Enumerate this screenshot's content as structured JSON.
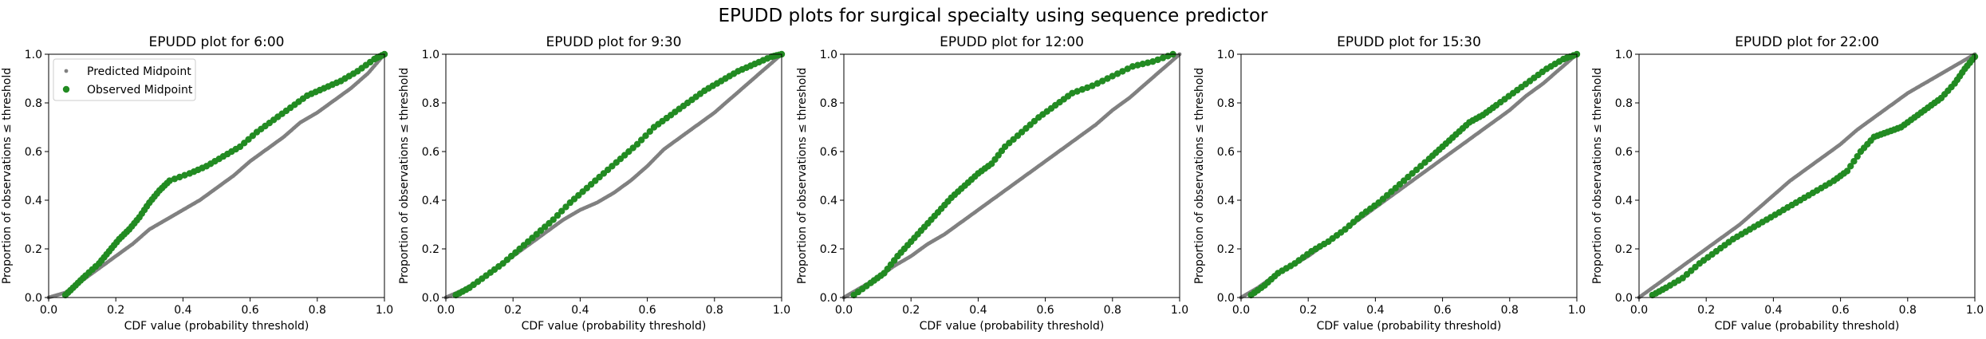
{
  "chart_data": {
    "suptitle": "EPUDD plots for surgical specialty using sequence predictor",
    "legend": {
      "placement": "upper-left",
      "panel": 0,
      "entries": [
        {
          "label": "Predicted Midpoint",
          "color": "#808080",
          "marker": "small-dot"
        },
        {
          "label": "Observed Midpoint",
          "color": "#228b22",
          "marker": "dot"
        }
      ]
    },
    "xlabel": "CDF value (probability threshold)",
    "ylabel": "Proportion of observations ≤ threshold",
    "xlim": [
      0,
      1
    ],
    "ylim": [
      0,
      1
    ],
    "xticks": [
      "0.0",
      "0.2",
      "0.4",
      "0.6",
      "0.8",
      "1.0"
    ],
    "yticks": [
      "0.0",
      "0.2",
      "0.4",
      "0.6",
      "0.8",
      "1.0"
    ],
    "panels": [
      {
        "type": "scatter",
        "title": "EPUDD plot for 6:00",
        "predicted_curve": [
          [
            0,
            0
          ],
          [
            0.05,
            0.02
          ],
          [
            0.1,
            0.07
          ],
          [
            0.15,
            0.12
          ],
          [
            0.2,
            0.17
          ],
          [
            0.25,
            0.22
          ],
          [
            0.3,
            0.28
          ],
          [
            0.35,
            0.32
          ],
          [
            0.4,
            0.36
          ],
          [
            0.45,
            0.4
          ],
          [
            0.5,
            0.45
          ],
          [
            0.55,
            0.5
          ],
          [
            0.6,
            0.56
          ],
          [
            0.65,
            0.61
          ],
          [
            0.7,
            0.66
          ],
          [
            0.75,
            0.72
          ],
          [
            0.8,
            0.76
          ],
          [
            0.85,
            0.81
          ],
          [
            0.9,
            0.86
          ],
          [
            0.95,
            0.92
          ],
          [
            1,
            1
          ]
        ],
        "observed_curve": [
          [
            0.05,
            0.01
          ],
          [
            0.08,
            0.05
          ],
          [
            0.11,
            0.09
          ],
          [
            0.15,
            0.14
          ],
          [
            0.18,
            0.19
          ],
          [
            0.21,
            0.24
          ],
          [
            0.24,
            0.28
          ],
          [
            0.27,
            0.33
          ],
          [
            0.3,
            0.39
          ],
          [
            0.33,
            0.44
          ],
          [
            0.36,
            0.48
          ],
          [
            0.42,
            0.51
          ],
          [
            0.47,
            0.54
          ],
          [
            0.52,
            0.58
          ],
          [
            0.57,
            0.62
          ],
          [
            0.62,
            0.68
          ],
          [
            0.67,
            0.73
          ],
          [
            0.72,
            0.78
          ],
          [
            0.77,
            0.83
          ],
          [
            0.82,
            0.86
          ],
          [
            0.87,
            0.89
          ],
          [
            0.92,
            0.93
          ],
          [
            0.97,
            0.98
          ],
          [
            1,
            1
          ]
        ]
      },
      {
        "type": "scatter",
        "title": "EPUDD plot for 9:30",
        "predicted_curve": [
          [
            0,
            0
          ],
          [
            0.05,
            0.03
          ],
          [
            0.1,
            0.07
          ],
          [
            0.15,
            0.12
          ],
          [
            0.2,
            0.17
          ],
          [
            0.25,
            0.22
          ],
          [
            0.3,
            0.27
          ],
          [
            0.35,
            0.32
          ],
          [
            0.4,
            0.36
          ],
          [
            0.45,
            0.39
          ],
          [
            0.5,
            0.43
          ],
          [
            0.55,
            0.48
          ],
          [
            0.6,
            0.54
          ],
          [
            0.65,
            0.61
          ],
          [
            0.7,
            0.66
          ],
          [
            0.75,
            0.71
          ],
          [
            0.8,
            0.76
          ],
          [
            0.85,
            0.82
          ],
          [
            0.9,
            0.88
          ],
          [
            0.95,
            0.94
          ],
          [
            1,
            1
          ]
        ],
        "observed_curve": [
          [
            0.03,
            0.01
          ],
          [
            0.07,
            0.04
          ],
          [
            0.12,
            0.09
          ],
          [
            0.17,
            0.14
          ],
          [
            0.22,
            0.2
          ],
          [
            0.27,
            0.26
          ],
          [
            0.32,
            0.32
          ],
          [
            0.37,
            0.39
          ],
          [
            0.42,
            0.45
          ],
          [
            0.47,
            0.51
          ],
          [
            0.52,
            0.57
          ],
          [
            0.57,
            0.63
          ],
          [
            0.62,
            0.7
          ],
          [
            0.67,
            0.75
          ],
          [
            0.72,
            0.8
          ],
          [
            0.77,
            0.85
          ],
          [
            0.82,
            0.89
          ],
          [
            0.87,
            0.93
          ],
          [
            0.92,
            0.96
          ],
          [
            0.97,
            0.99
          ],
          [
            1,
            1
          ]
        ]
      },
      {
        "type": "scatter",
        "title": "EPUDD plot for 12:00",
        "predicted_curve": [
          [
            0,
            0
          ],
          [
            0.05,
            0.04
          ],
          [
            0.1,
            0.08
          ],
          [
            0.15,
            0.13
          ],
          [
            0.2,
            0.17
          ],
          [
            0.25,
            0.22
          ],
          [
            0.3,
            0.26
          ],
          [
            0.35,
            0.31
          ],
          [
            0.4,
            0.36
          ],
          [
            0.45,
            0.41
          ],
          [
            0.5,
            0.46
          ],
          [
            0.55,
            0.51
          ],
          [
            0.6,
            0.56
          ],
          [
            0.65,
            0.61
          ],
          [
            0.7,
            0.66
          ],
          [
            0.75,
            0.71
          ],
          [
            0.8,
            0.77
          ],
          [
            0.85,
            0.82
          ],
          [
            0.9,
            0.88
          ],
          [
            0.95,
            0.94
          ],
          [
            1,
            1
          ]
        ],
        "observed_curve": [
          [
            0.03,
            0.01
          ],
          [
            0.08,
            0.06
          ],
          [
            0.12,
            0.1
          ],
          [
            0.16,
            0.17
          ],
          [
            0.2,
            0.23
          ],
          [
            0.24,
            0.29
          ],
          [
            0.28,
            0.35
          ],
          [
            0.32,
            0.41
          ],
          [
            0.36,
            0.46
          ],
          [
            0.4,
            0.51
          ],
          [
            0.44,
            0.55
          ],
          [
            0.48,
            0.62
          ],
          [
            0.53,
            0.68
          ],
          [
            0.58,
            0.74
          ],
          [
            0.63,
            0.79
          ],
          [
            0.68,
            0.84
          ],
          [
            0.74,
            0.87
          ],
          [
            0.8,
            0.91
          ],
          [
            0.86,
            0.95
          ],
          [
            0.92,
            0.97
          ],
          [
            0.98,
            1.0
          ]
        ]
      },
      {
        "type": "scatter",
        "title": "EPUDD plot for 15:30",
        "predicted_curve": [
          [
            0,
            0
          ],
          [
            0.05,
            0.04
          ],
          [
            0.1,
            0.09
          ],
          [
            0.15,
            0.13
          ],
          [
            0.2,
            0.17
          ],
          [
            0.25,
            0.22
          ],
          [
            0.3,
            0.27
          ],
          [
            0.35,
            0.32
          ],
          [
            0.4,
            0.37
          ],
          [
            0.45,
            0.42
          ],
          [
            0.5,
            0.47
          ],
          [
            0.55,
            0.52
          ],
          [
            0.6,
            0.57
          ],
          [
            0.65,
            0.62
          ],
          [
            0.7,
            0.67
          ],
          [
            0.75,
            0.72
          ],
          [
            0.8,
            0.77
          ],
          [
            0.85,
            0.83
          ],
          [
            0.9,
            0.88
          ],
          [
            0.95,
            0.94
          ],
          [
            1,
            1
          ]
        ],
        "observed_curve": [
          [
            0.03,
            0.01
          ],
          [
            0.07,
            0.05
          ],
          [
            0.11,
            0.1
          ],
          [
            0.16,
            0.14
          ],
          [
            0.21,
            0.19
          ],
          [
            0.26,
            0.23
          ],
          [
            0.31,
            0.28
          ],
          [
            0.36,
            0.34
          ],
          [
            0.41,
            0.39
          ],
          [
            0.46,
            0.45
          ],
          [
            0.51,
            0.51
          ],
          [
            0.56,
            0.57
          ],
          [
            0.6,
            0.62
          ],
          [
            0.64,
            0.67
          ],
          [
            0.68,
            0.72
          ],
          [
            0.72,
            0.75
          ],
          [
            0.76,
            0.79
          ],
          [
            0.81,
            0.84
          ],
          [
            0.86,
            0.89
          ],
          [
            0.91,
            0.94
          ],
          [
            0.96,
            0.98
          ],
          [
            1,
            1
          ]
        ]
      },
      {
        "type": "scatter",
        "title": "EPUDD plot for 22:00",
        "predicted_curve": [
          [
            0,
            0
          ],
          [
            0.05,
            0.05
          ],
          [
            0.1,
            0.1
          ],
          [
            0.15,
            0.15
          ],
          [
            0.2,
            0.2
          ],
          [
            0.25,
            0.25
          ],
          [
            0.3,
            0.3
          ],
          [
            0.35,
            0.36
          ],
          [
            0.4,
            0.42
          ],
          [
            0.45,
            0.48
          ],
          [
            0.5,
            0.53
          ],
          [
            0.55,
            0.58
          ],
          [
            0.6,
            0.63
          ],
          [
            0.65,
            0.69
          ],
          [
            0.7,
            0.74
          ],
          [
            0.75,
            0.79
          ],
          [
            0.8,
            0.84
          ],
          [
            0.85,
            0.88
          ],
          [
            0.9,
            0.92
          ],
          [
            0.95,
            0.96
          ],
          [
            1,
            1
          ]
        ],
        "observed_curve": [
          [
            0.04,
            0.01
          ],
          [
            0.08,
            0.04
          ],
          [
            0.13,
            0.08
          ],
          [
            0.18,
            0.14
          ],
          [
            0.23,
            0.19
          ],
          [
            0.28,
            0.24
          ],
          [
            0.33,
            0.28
          ],
          [
            0.38,
            0.32
          ],
          [
            0.43,
            0.36
          ],
          [
            0.48,
            0.4
          ],
          [
            0.53,
            0.44
          ],
          [
            0.58,
            0.48
          ],
          [
            0.62,
            0.52
          ],
          [
            0.66,
            0.6
          ],
          [
            0.7,
            0.66
          ],
          [
            0.74,
            0.68
          ],
          [
            0.78,
            0.7
          ],
          [
            0.82,
            0.74
          ],
          [
            0.86,
            0.78
          ],
          [
            0.9,
            0.82
          ],
          [
            0.94,
            0.88
          ],
          [
            0.97,
            0.94
          ],
          [
            1,
            0.99
          ]
        ]
      }
    ]
  }
}
